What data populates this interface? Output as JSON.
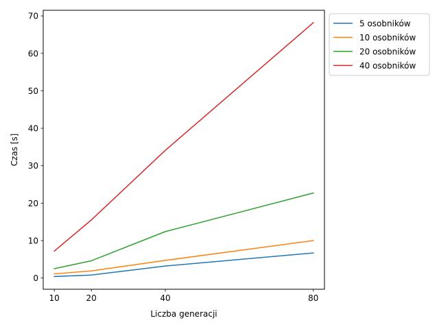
{
  "chart_data": {
    "type": "line",
    "title": "",
    "xlabel": "Liczba generacji",
    "ylabel": "Czas [s]",
    "x": [
      10,
      20,
      40,
      80
    ],
    "xlim": [
      7,
      83
    ],
    "ylim": [
      -3,
      71.5
    ],
    "xticks": [
      10,
      20,
      40,
      80
    ],
    "yticks": [
      0,
      10,
      20,
      30,
      40,
      50,
      60,
      70
    ],
    "grid": false,
    "legend_placement": "outside top-right",
    "series": [
      {
        "name": "5 osobników",
        "color": "#1f77b4",
        "values": [
          0.4,
          0.8,
          3.2,
          6.7
        ]
      },
      {
        "name": "10 osobników",
        "color": "#ff7f0e",
        "values": [
          1.1,
          1.9,
          4.7,
          10.0
        ]
      },
      {
        "name": "20 osobników",
        "color": "#2ca02c",
        "values": [
          2.5,
          4.6,
          12.4,
          22.7
        ]
      },
      {
        "name": "40 osobników",
        "color": "#d62728",
        "values": [
          7.2,
          15.5,
          34.1,
          68.2
        ]
      }
    ]
  }
}
